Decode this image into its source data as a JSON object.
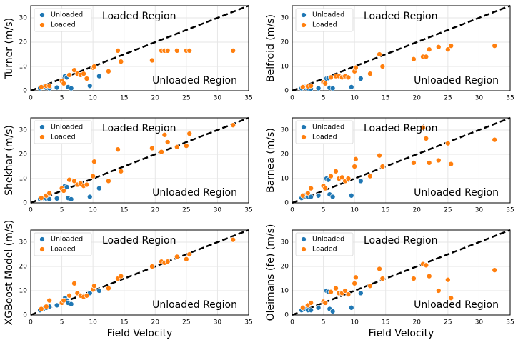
{
  "chart_data": [
    {
      "type": "scatter",
      "ylabel": "Turner (m/s)",
      "xlim": [
        0,
        35
      ],
      "ylim": [
        0,
        35
      ],
      "xticks": [
        0,
        5,
        10,
        15,
        20,
        25,
        30,
        35
      ],
      "yticks": [
        0,
        10,
        20,
        30
      ],
      "grid": true,
      "legend": "upper left",
      "annotations": [
        "Loaded Region",
        "Unloaded Region"
      ],
      "series": [
        {
          "name": "Unloaded",
          "color": "#1f77b4",
          "x": [
            1.5,
            2.0,
            2.5,
            3.0,
            4.2,
            5.5,
            5.8,
            6.0,
            6.5,
            9.5,
            11.0
          ],
          "values": [
            1,
            1.5,
            1.2,
            1,
            1.3,
            6,
            5.5,
            1.5,
            1,
            2,
            6
          ]
        },
        {
          "name": "Loaded",
          "color": "#ff7f0e",
          "x": [
            1.7,
            2.5,
            3.0,
            5.0,
            5.3,
            6.2,
            7.0,
            7.5,
            8.0,
            8.5,
            9.0,
            10.0,
            10.2,
            12.5,
            14.0,
            14.5,
            19.5,
            21.0,
            21.5,
            22.0,
            23.5,
            25.0,
            25.5,
            32.5
          ],
          "values": [
            1.5,
            2,
            2,
            4,
            3,
            6.5,
            8.5,
            7,
            6.5,
            7,
            5,
            9.5,
            10,
            8,
            16.5,
            12,
            12.5,
            16.5,
            16.5,
            16.5,
            16.5,
            16.5,
            16.5,
            16.5
          ]
        }
      ]
    },
    {
      "type": "scatter",
      "ylabel": "Belfroid (m/s)",
      "xlim": [
        0,
        35
      ],
      "ylim": [
        0,
        35
      ],
      "xticks": [
        0,
        5,
        10,
        15,
        20,
        25,
        30,
        35
      ],
      "yticks": [
        0,
        10,
        20,
        30
      ],
      "grid": true,
      "legend": "upper left",
      "annotations": [
        "Loaded Region",
        "Unloaded Region"
      ],
      "series": [
        {
          "name": "Unloaded",
          "color": "#1f77b4",
          "x": [
            1.5,
            2.0,
            2.5,
            3.0,
            4.2,
            5.5,
            5.8,
            6.0,
            6.5,
            9.5,
            11.0
          ],
          "values": [
            1,
            1.2,
            1,
            0.8,
            1,
            5,
            5.2,
            1.2,
            1,
            1.5,
            5
          ]
        },
        {
          "name": "Loaded",
          "color": "#ff7f0e",
          "x": [
            1.7,
            2.5,
            3.0,
            5.0,
            5.3,
            6.2,
            7.0,
            7.5,
            8.0,
            8.5,
            9.0,
            10.0,
            10.2,
            12.5,
            14.0,
            14.5,
            19.5,
            21.0,
            21.5,
            22.0,
            23.5,
            25.0,
            25.5,
            32.5
          ],
          "values": [
            1.5,
            1.8,
            2,
            3.5,
            3,
            5.5,
            6,
            6,
            5.5,
            6,
            5.5,
            8,
            9.5,
            7,
            15,
            10,
            13,
            14,
            14,
            17,
            18,
            17,
            18.5,
            18.5
          ]
        }
      ]
    },
    {
      "type": "scatter",
      "ylabel": "Shekhar (m/s)",
      "xlim": [
        0,
        35
      ],
      "ylim": [
        0,
        35
      ],
      "xticks": [
        0,
        5,
        10,
        15,
        20,
        25,
        30,
        35
      ],
      "yticks": [
        0,
        10,
        20,
        30
      ],
      "grid": true,
      "legend": "upper left",
      "annotations": [
        "Loaded Region",
        "Unloaded Region"
      ],
      "series": [
        {
          "name": "Unloaded",
          "color": "#1f77b4",
          "x": [
            1.5,
            2.0,
            2.5,
            3.0,
            4.2,
            5.5,
            5.8,
            6.0,
            6.5,
            9.5,
            11.0
          ],
          "values": [
            1.5,
            2,
            1.8,
            1.5,
            1.8,
            7,
            6.5,
            2,
            1.5,
            2.5,
            6
          ]
        },
        {
          "name": "Loaded",
          "color": "#ff7f0e",
          "x": [
            1.7,
            2.5,
            3.0,
            5.0,
            5.3,
            6.2,
            7.0,
            7.5,
            8.0,
            8.5,
            9.0,
            10.0,
            10.2,
            12.5,
            14.0,
            14.5,
            19.5,
            21.0,
            21.5,
            22.0,
            23.5,
            25.0,
            25.5,
            32.5
          ],
          "values": [
            2,
            3,
            4,
            6,
            5,
            9.5,
            9,
            7.5,
            8,
            7,
            7.5,
            11,
            17,
            9,
            22,
            13,
            22.5,
            21,
            28,
            25,
            23,
            23.5,
            28.5,
            32
          ]
        }
      ]
    },
    {
      "type": "scatter",
      "ylabel": "Barnea (m/s)",
      "xlim": [
        0,
        35
      ],
      "ylim": [
        0,
        35
      ],
      "xticks": [
        0,
        5,
        10,
        15,
        20,
        25,
        30,
        35
      ],
      "yticks": [
        0,
        10,
        20,
        30
      ],
      "grid": true,
      "legend": "upper left",
      "annotations": [
        "Loaded Region",
        "Unloaded Region"
      ],
      "series": [
        {
          "name": "Unloaded",
          "color": "#1f77b4",
          "x": [
            1.5,
            2.0,
            2.5,
            3.0,
            4.2,
            5.5,
            5.8,
            6.0,
            6.5,
            9.5,
            11.0
          ],
          "values": [
            2,
            3,
            2.5,
            2.5,
            3,
            10,
            9.5,
            3.5,
            2.5,
            3,
            9
          ]
        },
        {
          "name": "Loaded",
          "color": "#ff7f0e",
          "x": [
            1.7,
            2.5,
            3.0,
            5.0,
            5.3,
            6.2,
            7.0,
            7.5,
            8.0,
            8.5,
            9.0,
            10.0,
            10.2,
            12.5,
            14.0,
            14.5,
            19.5,
            21.0,
            21.5,
            22.0,
            23.5,
            25.0,
            25.5,
            32.5
          ],
          "values": [
            3,
            4,
            6,
            7,
            6,
            11,
            13,
            10,
            10.5,
            9,
            10,
            15,
            18,
            11,
            19.5,
            15,
            16.5,
            31,
            26.5,
            16.5,
            17.5,
            24.5,
            16,
            26
          ]
        }
      ]
    },
    {
      "type": "scatter",
      "ylabel": "XGBoost Model (m/s)",
      "xlabel": "Field Velocity",
      "xlim": [
        0,
        35
      ],
      "ylim": [
        0,
        35
      ],
      "xticks": [
        0,
        5,
        10,
        15,
        20,
        25,
        30,
        35
      ],
      "yticks": [
        0,
        10,
        20,
        30
      ],
      "grid": true,
      "legend": "upper left",
      "annotations": [
        "Loaded Region",
        "Unloaded Region"
      ],
      "series": [
        {
          "name": "Unloaded",
          "color": "#1f77b4",
          "x": [
            1.5,
            2.0,
            2.5,
            3.0,
            4.2,
            5.5,
            5.8,
            6.0,
            6.5,
            9.5,
            11.0
          ],
          "values": [
            2,
            2.5,
            3,
            3.5,
            4,
            7,
            6,
            5,
            4.5,
            9,
            10
          ]
        },
        {
          "name": "Loaded",
          "color": "#ff7f0e",
          "x": [
            1.7,
            2.5,
            3.0,
            5.0,
            5.3,
            6.2,
            7.0,
            7.5,
            8.0,
            8.5,
            9.0,
            10.0,
            10.2,
            12.5,
            14.0,
            14.5,
            19.5,
            21.0,
            21.5,
            22.0,
            23.5,
            25.0,
            25.5,
            32.5
          ],
          "values": [
            2.5,
            3.5,
            6,
            5,
            6,
            8,
            13,
            9,
            8,
            7.5,
            8,
            10.5,
            12,
            11,
            15,
            16,
            20,
            22,
            21.5,
            22,
            24,
            23,
            25,
            31
          ]
        }
      ]
    },
    {
      "type": "scatter",
      "ylabel": "Oleimans (fe) (m/s)",
      "xlabel": "Field Velocity",
      "xlim": [
        0,
        35
      ],
      "ylim": [
        0,
        35
      ],
      "xticks": [
        0,
        5,
        10,
        15,
        20,
        25,
        30,
        35
      ],
      "yticks": [
        0,
        10,
        20,
        30
      ],
      "grid": true,
      "legend": "upper left",
      "annotations": [
        "Loaded Region",
        "Unloaded Region"
      ],
      "series": [
        {
          "name": "Unloaded",
          "color": "#1f77b4",
          "x": [
            1.5,
            2.0,
            2.5,
            3.0,
            4.2,
            5.5,
            5.8,
            6.0,
            6.5,
            9.5,
            11.0
          ],
          "values": [
            2,
            2.5,
            2,
            2,
            3,
            10,
            9.5,
            2.5,
            1.5,
            3,
            9
          ]
        },
        {
          "name": "Loaded",
          "color": "#ff7f0e",
          "x": [
            1.7,
            2.5,
            3.0,
            5.0,
            5.3,
            6.2,
            7.0,
            7.5,
            8.0,
            8.5,
            9.0,
            10.0,
            10.2,
            12.5,
            14.0,
            14.5,
            19.5,
            21.0,
            21.5,
            22.0,
            23.5,
            25.0,
            25.5,
            32.5
          ],
          "values": [
            3,
            4,
            5,
            5.5,
            5,
            9.5,
            11,
            9,
            9,
            10,
            8.5,
            13,
            15.5,
            12,
            19,
            15,
            15,
            21,
            20.5,
            16,
            10,
            14.5,
            7,
            18.5
          ]
        }
      ]
    }
  ]
}
